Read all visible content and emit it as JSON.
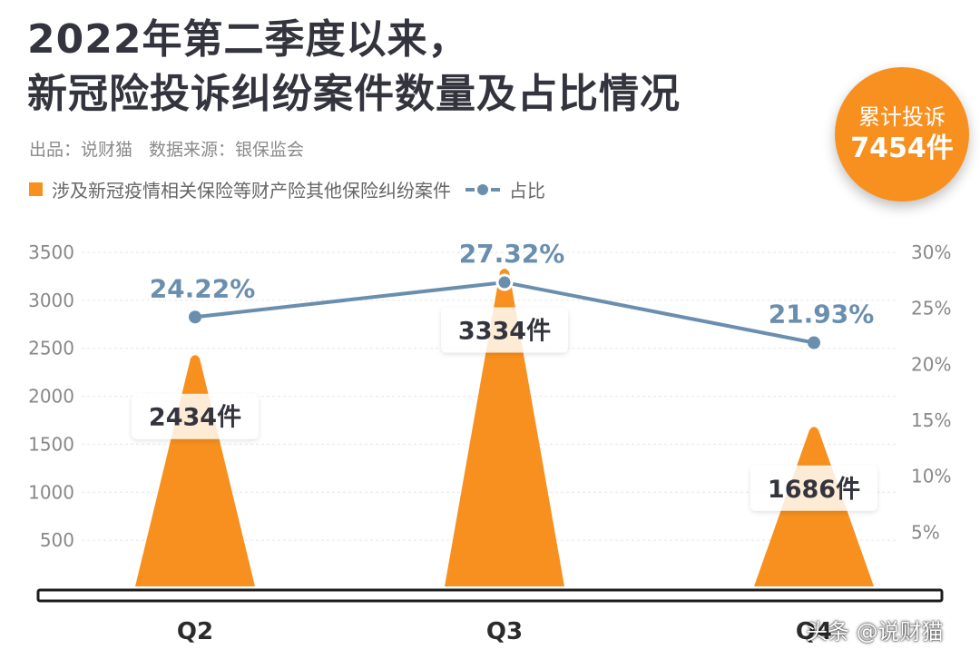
{
  "header": {
    "title_line1": "2022年第二季度以来，",
    "title_line2": "新冠险投诉纠纷案件数量及占比情况",
    "source_producer": "出品：说财猫",
    "source_data": "数据来源：银保监会"
  },
  "badge": {
    "label": "累计投诉",
    "value": "7454件"
  },
  "watermark": "头条 @说财猫",
  "colors": {
    "bar": "#f7901e",
    "line": "#6a8fae",
    "label_text": "#33343d",
    "axis_text": "#888888"
  },
  "chart_data": {
    "type": "bar",
    "categories": [
      "Q2",
      "Q3",
      "Q4"
    ],
    "series": [
      {
        "name": "涉及新冠疫情相关保险等财产险其他保险纠纷案件",
        "type": "bar",
        "axis": "left",
        "values": [
          2434,
          3334,
          1686
        ],
        "labels": [
          "2434件",
          "3334件",
          "1686件"
        ]
      },
      {
        "name": "占比",
        "type": "line",
        "axis": "right",
        "values": [
          24.22,
          27.32,
          21.93
        ],
        "labels": [
          "24.22%",
          "27.32%",
          "21.93%"
        ]
      }
    ],
    "left_axis": {
      "range": [
        0,
        3500
      ],
      "ticks": [
        500,
        1000,
        1500,
        2000,
        2500,
        3000,
        3500
      ],
      "tick_labels": [
        "500",
        "1000",
        "1500",
        "2000",
        "2500",
        "3000",
        "3500"
      ]
    },
    "right_axis": {
      "range": [
        0,
        30
      ],
      "ticks": [
        5,
        10,
        15,
        20,
        25,
        30
      ],
      "tick_labels": [
        "5%",
        "10%",
        "15%",
        "20%",
        "25%",
        "30%"
      ]
    },
    "grid": true,
    "legend_position": "top-left"
  }
}
